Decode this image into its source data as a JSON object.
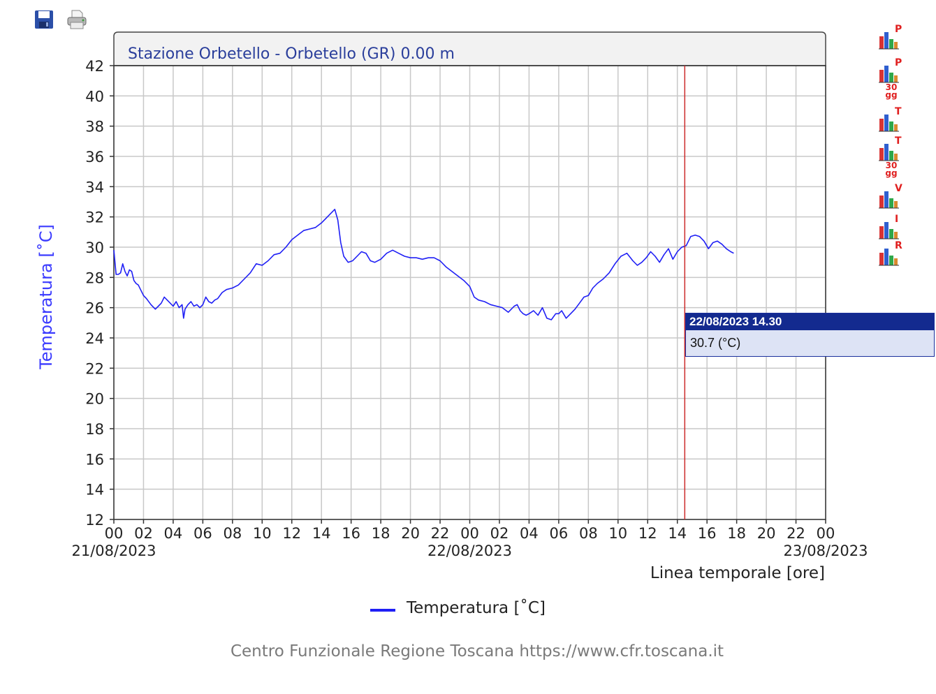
{
  "toolbar": {
    "save_icon": "floppy-disk-icon",
    "print_icon": "printer-icon"
  },
  "side_icons": [
    {
      "name": "rain-chart-icon",
      "letter": "P",
      "sub": ""
    },
    {
      "name": "rain-30-days-chart-icon",
      "letter": "P",
      "sub": "30 gg"
    },
    {
      "name": "temperature-chart-icon",
      "letter": "T",
      "sub": ""
    },
    {
      "name": "temperature-30-days-chart-icon",
      "letter": "T",
      "sub": "30 gg"
    },
    {
      "name": "wind-chart-icon",
      "letter": "V",
      "sub": ""
    },
    {
      "name": "hydrometric-chart-icon",
      "letter": "I",
      "sub": ""
    },
    {
      "name": "radiation-chart-icon",
      "letter": "R",
      "sub": ""
    }
  ],
  "tooltip": {
    "date": "22/08/2023 14.30",
    "value": "30.7 (°C)"
  },
  "legend": {
    "label": "Temperatura [˚C]",
    "color": "#1f1ff5"
  },
  "footer": "Centro Funzionale Regione Toscana https://www.cfr.toscana.it",
  "colors": {
    "series": "#1f1ff5",
    "cursor": "#cc2a2a",
    "title": "#2a3e9b",
    "ylabel": "#3b3bff",
    "grid": "#c8c8c8"
  },
  "chart_data": {
    "type": "line",
    "title": "Stazione Orbetello - Orbetello (GR) 0.00 m",
    "xlabel": "Linea temporale [ore]",
    "ylabel": "Temperatura [˚C]",
    "ylim": [
      12,
      42
    ],
    "yticks": [
      12,
      14,
      16,
      18,
      20,
      22,
      24,
      26,
      28,
      30,
      32,
      34,
      36,
      38,
      40,
      42
    ],
    "xlim": [
      0,
      48
    ],
    "xtick_labels": [
      "00",
      "02",
      "04",
      "06",
      "08",
      "10",
      "12",
      "14",
      "16",
      "18",
      "20",
      "22",
      "00",
      "02",
      "04",
      "06",
      "08",
      "10",
      "12",
      "14",
      "16",
      "18",
      "20",
      "22",
      "00"
    ],
    "date_labels": [
      {
        "hour": 0,
        "label": "21/08/2023"
      },
      {
        "hour": 24,
        "label": "22/08/2023"
      },
      {
        "hour": 48,
        "label": "23/08/2023"
      }
    ],
    "grid": true,
    "cursor": {
      "hour": 38.5,
      "label": "22/08/2023 14.30",
      "value": 30.7
    },
    "series": [
      {
        "name": "Temperatura [˚C]",
        "x": [
          0,
          0.15,
          0.3,
          0.45,
          0.6,
          0.75,
          0.9,
          1.05,
          1.2,
          1.35,
          1.5,
          1.65,
          1.8,
          2.0,
          2.2,
          2.5,
          2.8,
          3.0,
          3.2,
          3.4,
          3.6,
          3.8,
          4.0,
          4.2,
          4.4,
          4.6,
          4.7,
          4.8,
          5.0,
          5.2,
          5.4,
          5.6,
          5.8,
          6.0,
          6.2,
          6.4,
          6.6,
          6.8,
          7.0,
          7.3,
          7.6,
          8.0,
          8.4,
          8.8,
          9.2,
          9.6,
          10.0,
          10.4,
          10.8,
          11.2,
          11.6,
          12.0,
          12.4,
          12.8,
          13.2,
          13.6,
          14.0,
          14.3,
          14.6,
          14.9,
          15.1,
          15.3,
          15.5,
          15.8,
          16.1,
          16.4,
          16.7,
          17.0,
          17.3,
          17.6,
          18.0,
          18.4,
          18.8,
          19.2,
          19.6,
          20.0,
          20.4,
          20.8,
          21.2,
          21.6,
          22.0,
          22.4,
          22.8,
          23.2,
          23.6,
          24.0,
          24.3,
          24.6,
          25.0,
          25.4,
          25.8,
          26.2,
          26.6,
          27.0,
          27.2,
          27.4,
          27.6,
          27.8,
          28.0,
          28.3,
          28.6,
          28.9,
          29.2,
          29.5,
          29.8,
          30.0,
          30.2,
          30.5,
          30.8,
          31.1,
          31.4,
          31.7,
          32.0,
          32.3,
          32.6,
          33.0,
          33.4,
          33.8,
          34.2,
          34.6,
          35.0,
          35.3,
          35.6,
          35.9,
          36.2,
          36.5,
          36.8,
          37.1,
          37.4,
          37.7,
          38.0,
          38.3,
          38.6,
          38.9,
          39.2,
          39.5,
          39.8,
          40.1,
          40.4,
          40.7,
          41.0,
          41.3,
          41.6,
          41.8
        ],
        "values": [
          29.8,
          28.2,
          28.2,
          28.3,
          28.9,
          28.4,
          28.1,
          28.5,
          28.4,
          27.8,
          27.6,
          27.5,
          27.2,
          26.8,
          26.6,
          26.2,
          25.9,
          26.1,
          26.3,
          26.7,
          26.5,
          26.3,
          26.1,
          26.4,
          26.0,
          26.2,
          25.3,
          25.9,
          26.2,
          26.4,
          26.1,
          26.2,
          26.0,
          26.2,
          26.7,
          26.4,
          26.3,
          26.5,
          26.6,
          27.0,
          27.2,
          27.3,
          27.5,
          27.9,
          28.3,
          28.9,
          28.8,
          29.1,
          29.5,
          29.6,
          30.0,
          30.5,
          30.8,
          31.1,
          31.2,
          31.3,
          31.6,
          31.9,
          32.2,
          32.5,
          31.8,
          30.3,
          29.4,
          29.0,
          29.1,
          29.4,
          29.7,
          29.6,
          29.1,
          29.0,
          29.2,
          29.6,
          29.8,
          29.6,
          29.4,
          29.3,
          29.3,
          29.2,
          29.3,
          29.3,
          29.1,
          28.7,
          28.4,
          28.1,
          27.8,
          27.4,
          26.7,
          26.5,
          26.4,
          26.2,
          26.1,
          26.0,
          25.7,
          26.1,
          26.2,
          25.8,
          25.6,
          25.5,
          25.6,
          25.8,
          25.5,
          26.0,
          25.3,
          25.2,
          25.6,
          25.6,
          25.8,
          25.3,
          25.6,
          25.9,
          26.3,
          26.7,
          26.8,
          27.3,
          27.6,
          27.9,
          28.3,
          28.9,
          29.4,
          29.6,
          29.1,
          28.8,
          29.0,
          29.3,
          29.7,
          29.4,
          29.0,
          29.5,
          29.9,
          29.2,
          29.7,
          30.0,
          30.1,
          30.7,
          30.8,
          30.7,
          30.4,
          29.9,
          30.3,
          30.4,
          30.2,
          29.9,
          29.7,
          29.6
        ]
      }
    ]
  }
}
